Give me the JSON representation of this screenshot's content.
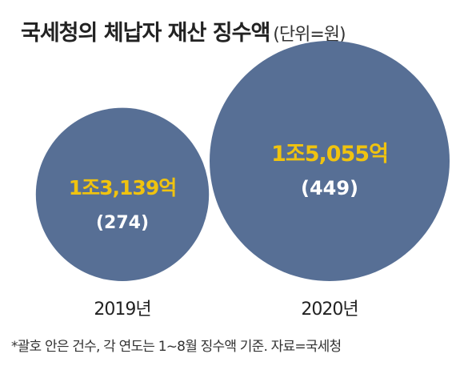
{
  "title": "국세청의 체납자 재산 징수액",
  "unit": "(단위=원)",
  "chart_data": {
    "type": "bubble",
    "title": "국세청의 체납자 재산 징수액",
    "unit": "(단위=원)",
    "categories": [
      "2019년",
      "2020년"
    ],
    "values": [
      1313900000000,
      1505500000000
    ],
    "value_labels": [
      "1조3,139억",
      "1조5,055억"
    ],
    "counts": [
      274,
      449
    ],
    "count_labels": [
      "(274)",
      "(449)"
    ],
    "bubble_color": "#576f95",
    "value_color": "#f0c30f",
    "count_color": "#ffffff"
  },
  "footnote": "*괄호 안은 건수, 각 연도는 1~8월 징수액 기준. 자료=국세청"
}
